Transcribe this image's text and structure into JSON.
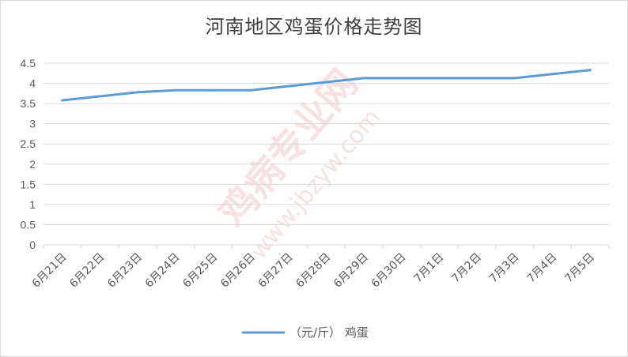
{
  "chart_data": {
    "type": "line",
    "title": "河南地区鸡蛋价格走势图",
    "categories": [
      "6月21日",
      "6月22日",
      "6月23日",
      "6月24日",
      "6月25日",
      "6月26日",
      "6月27日",
      "6月28日",
      "6月29日",
      "6月30日",
      "7月1日",
      "7月2日",
      "7月3日",
      "7月4日",
      "7月5日"
    ],
    "series": [
      {
        "name": "（元/斤） 鸡蛋",
        "values": [
          3.58,
          3.68,
          3.78,
          3.83,
          3.83,
          3.83,
          3.93,
          4.03,
          4.13,
          4.13,
          4.13,
          4.13,
          4.13,
          4.23,
          4.33
        ],
        "color": "#5b9bd5"
      }
    ],
    "ylim": [
      0,
      4.5
    ],
    "yticks": [
      "0",
      "0.5",
      "1",
      "1.5",
      "2",
      "2.5",
      "3",
      "3.5",
      "4",
      "4.5"
    ],
    "grid": true,
    "legend": "bottom"
  },
  "watermark": {
    "main": "鸡病专业网",
    "url": "www.jbzyw.com"
  }
}
